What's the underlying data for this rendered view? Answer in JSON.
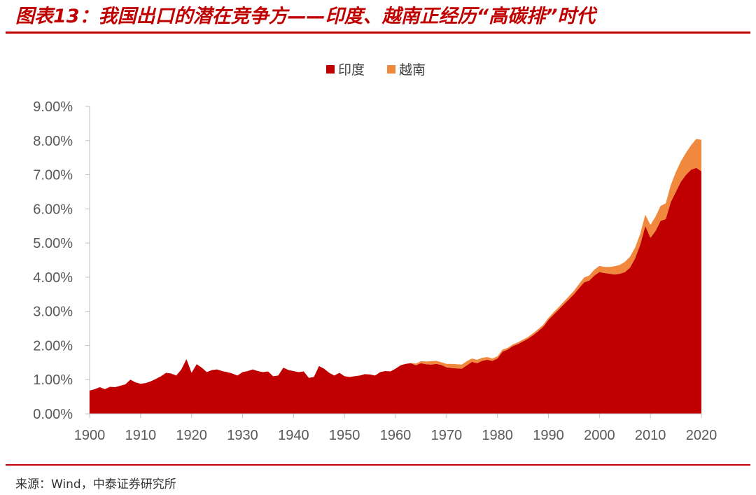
{
  "header": {
    "title": "图表13：我国出口的潜在竞争方——印度、越南正经历“高碳排”时代"
  },
  "footer": {
    "source": "来源：Wind，中泰证券研究所"
  },
  "colors": {
    "title_red": "#c00000",
    "india": "#c00000",
    "vietnam": "#f0883e",
    "axis_text": "#595959",
    "axis_line": "#bfbfbf"
  },
  "chart_data": {
    "type": "area",
    "stacked": true,
    "title": "",
    "xlabel": "",
    "ylabel": "",
    "xlim": [
      1900,
      2020
    ],
    "ylim": [
      0,
      9
    ],
    "y_unit": "%",
    "grid": false,
    "legend": {
      "position": "top",
      "entries": [
        "印度",
        "越南"
      ]
    },
    "x_ticks": [
      "1900",
      "1910",
      "1920",
      "1930",
      "1940",
      "1950",
      "1960",
      "1970",
      "1980",
      "1990",
      "2000",
      "2010",
      "2020"
    ],
    "y_ticks": [
      "0.00%",
      "1.00%",
      "2.00%",
      "3.00%",
      "4.00%",
      "5.00%",
      "6.00%",
      "7.00%",
      "8.00%",
      "9.00%"
    ],
    "x": [
      1900,
      1901,
      1902,
      1903,
      1904,
      1905,
      1906,
      1907,
      1908,
      1909,
      1910,
      1911,
      1912,
      1913,
      1914,
      1915,
      1916,
      1917,
      1918,
      1919,
      1920,
      1921,
      1922,
      1923,
      1924,
      1925,
      1926,
      1927,
      1928,
      1929,
      1930,
      1931,
      1932,
      1933,
      1934,
      1935,
      1936,
      1937,
      1938,
      1939,
      1940,
      1941,
      1942,
      1943,
      1944,
      1945,
      1946,
      1947,
      1948,
      1949,
      1950,
      1951,
      1952,
      1953,
      1954,
      1955,
      1956,
      1957,
      1958,
      1959,
      1960,
      1961,
      1962,
      1963,
      1964,
      1965,
      1966,
      1967,
      1968,
      1969,
      1970,
      1971,
      1972,
      1973,
      1974,
      1975,
      1976,
      1977,
      1978,
      1979,
      1980,
      1981,
      1982,
      1983,
      1984,
      1985,
      1986,
      1987,
      1988,
      1989,
      1990,
      1991,
      1992,
      1993,
      1994,
      1995,
      1996,
      1997,
      1998,
      1999,
      2000,
      2001,
      2002,
      2003,
      2004,
      2005,
      2006,
      2007,
      2008,
      2009,
      2010,
      2011,
      2012,
      2013,
      2014,
      2015,
      2016,
      2017,
      2018,
      2019,
      2020
    ],
    "series": [
      {
        "name": "印度",
        "values": [
          0.68,
          0.72,
          0.78,
          0.72,
          0.79,
          0.78,
          0.82,
          0.86,
          1.0,
          0.92,
          0.88,
          0.9,
          0.95,
          1.02,
          1.1,
          1.2,
          1.18,
          1.12,
          1.3,
          1.6,
          1.2,
          1.45,
          1.35,
          1.22,
          1.28,
          1.3,
          1.25,
          1.22,
          1.18,
          1.12,
          1.22,
          1.25,
          1.3,
          1.25,
          1.22,
          1.24,
          1.1,
          1.12,
          1.35,
          1.28,
          1.25,
          1.22,
          1.24,
          1.05,
          1.08,
          1.4,
          1.32,
          1.2,
          1.12,
          1.2,
          1.1,
          1.08,
          1.1,
          1.12,
          1.16,
          1.15,
          1.12,
          1.22,
          1.25,
          1.24,
          1.32,
          1.42,
          1.46,
          1.48,
          1.42,
          1.48,
          1.45,
          1.44,
          1.46,
          1.43,
          1.36,
          1.34,
          1.33,
          1.32,
          1.42,
          1.52,
          1.48,
          1.55,
          1.58,
          1.55,
          1.62,
          1.82,
          1.88,
          1.98,
          2.04,
          2.12,
          2.2,
          2.3,
          2.42,
          2.55,
          2.75,
          2.9,
          3.05,
          3.2,
          3.35,
          3.5,
          3.68,
          3.85,
          3.9,
          4.05,
          4.15,
          4.12,
          4.1,
          4.08,
          4.1,
          4.15,
          4.28,
          4.55,
          4.95,
          5.5,
          5.15,
          5.35,
          5.65,
          5.7,
          6.2,
          6.5,
          6.8,
          7.0,
          7.15,
          7.2,
          7.1
        ]
      },
      {
        "name": "越南",
        "values": [
          0,
          0,
          0,
          0,
          0,
          0,
          0,
          0,
          0,
          0,
          0,
          0,
          0,
          0,
          0,
          0,
          0,
          0,
          0,
          0,
          0,
          0,
          0,
          0,
          0,
          0,
          0,
          0,
          0,
          0,
          0,
          0,
          0,
          0,
          0,
          0,
          0,
          0,
          0,
          0,
          0,
          0,
          0,
          0,
          0,
          0,
          0,
          0,
          0,
          0,
          0,
          0,
          0,
          0,
          0,
          0,
          0,
          0,
          0,
          0,
          0,
          0,
          0,
          0.01,
          0.05,
          0.06,
          0.08,
          0.1,
          0.09,
          0.08,
          0.1,
          0.12,
          0.12,
          0.12,
          0.12,
          0.1,
          0.1,
          0.09,
          0.08,
          0.07,
          0.06,
          0.06,
          0.05,
          0.05,
          0.05,
          0.05,
          0.05,
          0.06,
          0.06,
          0.06,
          0.06,
          0.07,
          0.07,
          0.08,
          0.09,
          0.1,
          0.12,
          0.14,
          0.15,
          0.17,
          0.18,
          0.18,
          0.2,
          0.24,
          0.26,
          0.3,
          0.32,
          0.32,
          0.32,
          0.33,
          0.38,
          0.42,
          0.44,
          0.46,
          0.5,
          0.58,
          0.6,
          0.65,
          0.72,
          0.85,
          0.92
        ]
      }
    ]
  }
}
